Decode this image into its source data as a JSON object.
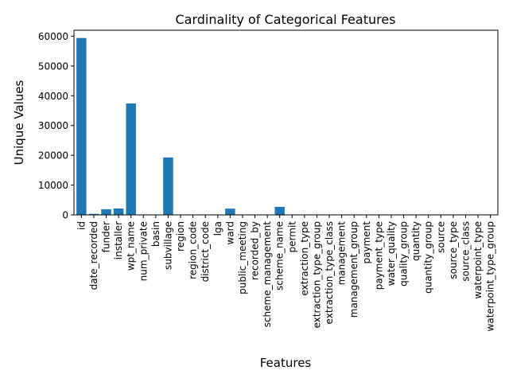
{
  "chart_data": {
    "type": "bar",
    "title": "Cardinality of Categorical Features",
    "xlabel": "Features",
    "ylabel": "Unique Values",
    "ylim": [
      0,
      62000
    ],
    "yticks": [
      0,
      10000,
      20000,
      30000,
      40000,
      50000,
      60000
    ],
    "grid": false,
    "bar_color": "#1f77b4",
    "categories": [
      "id",
      "date_recorded",
      "funder",
      "installer",
      "wpt_name",
      "num_private",
      "basin",
      "subvillage",
      "region",
      "region_code",
      "district_code",
      "lga",
      "ward",
      "public_meeting",
      "recorded_by",
      "scheme_management",
      "scheme_name",
      "permit",
      "extraction_type",
      "extraction_type_group",
      "extraction_type_class",
      "management",
      "management_group",
      "payment",
      "payment_type",
      "water_quality",
      "quality_group",
      "quantity",
      "quantity_group",
      "source",
      "source_type",
      "source_class",
      "waterpoint_type",
      "waterpoint_type_group"
    ],
    "values": [
      59400,
      356,
      1897,
      2145,
      37400,
      65,
      9,
      19287,
      21,
      27,
      20,
      125,
      2092,
      2,
      1,
      12,
      2696,
      2,
      18,
      13,
      7,
      12,
      5,
      7,
      7,
      8,
      6,
      5,
      5,
      10,
      7,
      3,
      7,
      6
    ]
  }
}
